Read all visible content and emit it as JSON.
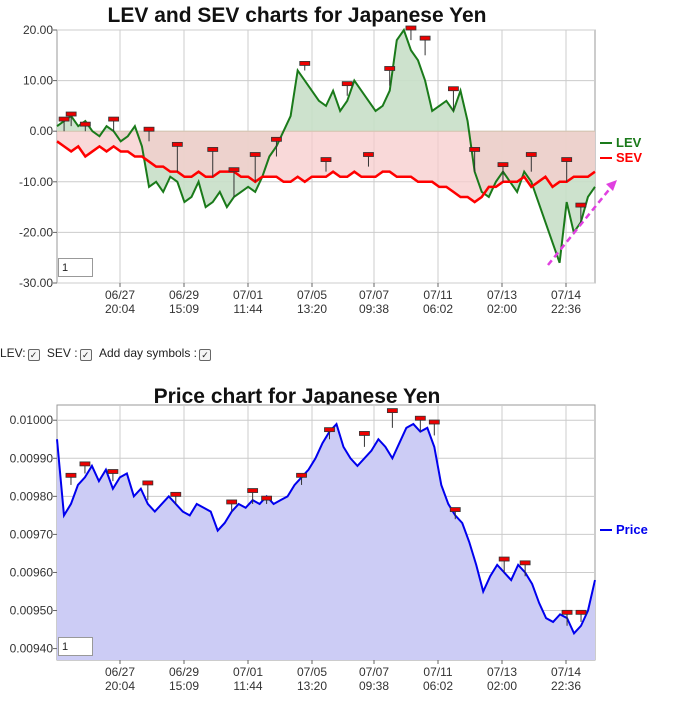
{
  "chart_data": [
    {
      "type": "line",
      "title": "LEV and SEV charts for Japanese Yen",
      "x_tick_labels": [
        [
          "06/27",
          "20:04"
        ],
        [
          "06/29",
          "15:09"
        ],
        [
          "07/01",
          "11:44"
        ],
        [
          "07/05",
          "13:20"
        ],
        [
          "07/07",
          "09:38"
        ],
        [
          "07/11",
          "06:02"
        ],
        [
          "07/13",
          "02:00"
        ],
        [
          "07/14",
          "22:36"
        ]
      ],
      "y_tick_labels": [
        "20.00",
        "10.00",
        "0.00",
        "-10.00",
        "-20.00",
        "-30.00"
      ],
      "ylim": [
        -30,
        20
      ],
      "grid": true,
      "legend_position": "right",
      "zoom_value": "1",
      "series": [
        {
          "name": "LEV",
          "color": "#1a7a1a",
          "values": [
            1,
            2,
            3,
            1,
            2,
            0,
            -1,
            1,
            0,
            -2,
            -1,
            1,
            -3,
            -11,
            -10,
            -12,
            -9,
            -10,
            -14,
            -13,
            -10,
            -15,
            -14,
            -12,
            -15,
            -13,
            -12,
            -11,
            -12,
            -9,
            -5,
            -3,
            0,
            3,
            12,
            10,
            8,
            6,
            5,
            8,
            4,
            6,
            10,
            8,
            6,
            4,
            5,
            8,
            18,
            20,
            16,
            14,
            10,
            4,
            5,
            6,
            4,
            8,
            2,
            -8,
            -12,
            -13,
            -10,
            -8,
            -10,
            -12,
            -8,
            -10,
            -14,
            -18,
            -22,
            -26,
            -14,
            -20,
            -18,
            -13,
            -11
          ]
        },
        {
          "name": "SEV",
          "color": "#ff0000",
          "values": [
            -2,
            -3,
            -4,
            -3,
            -5,
            -4,
            -3,
            -4,
            -3,
            -4,
            -4,
            -5,
            -5,
            -6,
            -7,
            -7,
            -8,
            -8,
            -9,
            -9,
            -8,
            -9,
            -9,
            -8,
            -8,
            -8,
            -9,
            -9,
            -10,
            -9,
            -9,
            -9,
            -10,
            -10,
            -9,
            -10,
            -9,
            -9,
            -9,
            -8,
            -9,
            -9,
            -8,
            -9,
            -9,
            -9,
            -8,
            -8,
            -9,
            -9,
            -9,
            -10,
            -10,
            -10,
            -11,
            -11,
            -12,
            -13,
            -13,
            -14,
            -13,
            -11,
            -11,
            -10,
            -10,
            -10,
            -9,
            -11,
            -10,
            -9,
            -11,
            -10,
            -10,
            -9,
            -9,
            -9,
            -8
          ]
        }
      ],
      "shading": {
        "above_zero_fill": "#c8dfc8",
        "below_zero_fill": "#f7cccc",
        "band_fill": "#d4c4b0"
      },
      "trend_arrow_color": "#e040e0",
      "day_markers": [
        {
          "x": 1,
          "y": 0,
          "level": 2,
          "dir": "up"
        },
        {
          "x": 2,
          "y": 1,
          "level": 3,
          "dir": "up"
        },
        {
          "x": 4,
          "y": 0,
          "level": 1,
          "dir": "up"
        },
        {
          "x": 8,
          "y": 0,
          "level": 2,
          "dir": "up"
        },
        {
          "x": 13,
          "y": -2,
          "level": 0,
          "dir": "up"
        },
        {
          "x": 17,
          "y": -8,
          "level": -3,
          "dir": "up"
        },
        {
          "x": 22,
          "y": -9,
          "level": -4,
          "dir": "up"
        },
        {
          "x": 25,
          "y": -13,
          "level": -8,
          "dir": "up"
        },
        {
          "x": 28,
          "y": -10,
          "level": -5,
          "dir": "up"
        },
        {
          "x": 31,
          "y": -5,
          "level": -2,
          "dir": "up"
        },
        {
          "x": 35,
          "y": 12,
          "level": 13,
          "dir": "up"
        },
        {
          "x": 38,
          "y": -8,
          "level": -6,
          "dir": "up"
        },
        {
          "x": 41,
          "y": 7,
          "level": 9,
          "dir": "up"
        },
        {
          "x": 44,
          "y": -7,
          "level": -5,
          "dir": "up"
        },
        {
          "x": 47,
          "y": 9,
          "level": 12,
          "dir": "up"
        },
        {
          "x": 50,
          "y": 18,
          "level": 20,
          "dir": "up"
        },
        {
          "x": 52,
          "y": 15,
          "level": 18,
          "dir": "up"
        },
        {
          "x": 56,
          "y": 4,
          "level": 8,
          "dir": "up"
        },
        {
          "x": 59,
          "y": -8,
          "level": -4,
          "dir": "up"
        },
        {
          "x": 63,
          "y": -10,
          "level": -7,
          "dir": "up"
        },
        {
          "x": 67,
          "y": -8,
          "level": -5,
          "dir": "up"
        },
        {
          "x": 72,
          "y": -10,
          "level": -6,
          "dir": "up"
        },
        {
          "x": 74,
          "y": -18,
          "level": -15,
          "dir": "up"
        }
      ]
    },
    {
      "type": "area",
      "title": "Price chart for Japanese Yen",
      "x_tick_labels": [
        [
          "06/27",
          "20:04"
        ],
        [
          "06/29",
          "15:09"
        ],
        [
          "07/01",
          "11:44"
        ],
        [
          "07/05",
          "13:20"
        ],
        [
          "07/07",
          "09:38"
        ],
        [
          "07/11",
          "06:02"
        ],
        [
          "07/13",
          "02:00"
        ],
        [
          "07/14",
          "22:36"
        ]
      ],
      "y_tick_labels": [
        "0.01000",
        "0.00990",
        "0.00980",
        "0.00970",
        "0.00960",
        "0.00950",
        "0.00940"
      ],
      "ylim": [
        0.00937,
        0.01004
      ],
      "grid": true,
      "legend_position": "right",
      "zoom_value": "1",
      "series": [
        {
          "name": "Price",
          "color": "#0000ee",
          "fill": "#ccccf5",
          "values": [
            0.00995,
            0.00975,
            0.00978,
            0.00983,
            0.00985,
            0.00988,
            0.00984,
            0.00987,
            0.00982,
            0.00985,
            0.00986,
            0.0098,
            0.00982,
            0.00978,
            0.00976,
            0.00978,
            0.0098,
            0.00978,
            0.00976,
            0.00975,
            0.00978,
            0.00977,
            0.00976,
            0.00971,
            0.00973,
            0.00976,
            0.00978,
            0.00977,
            0.00979,
            0.00978,
            0.0098,
            0.00978,
            0.00979,
            0.0098,
            0.00983,
            0.00985,
            0.00987,
            0.0099,
            0.00994,
            0.00997,
            0.00999,
            0.00993,
            0.0099,
            0.00988,
            0.0099,
            0.00992,
            0.00995,
            0.00993,
            0.0099,
            0.00994,
            0.00998,
            0.00999,
            0.00997,
            0.00998,
            0.00993,
            0.00983,
            0.00978,
            0.00975,
            0.00973,
            0.00968,
            0.00962,
            0.00955,
            0.00959,
            0.00962,
            0.0096,
            0.00958,
            0.00962,
            0.0096,
            0.00957,
            0.00952,
            0.00948,
            0.00947,
            0.00949,
            0.00948,
            0.00944,
            0.00946,
            0.0095,
            0.00958
          ]
        }
      ],
      "day_markers": [
        {
          "x": 2,
          "y": 0.00983,
          "level": 0.00985,
          "dir": "up"
        },
        {
          "x": 4,
          "y": 0.00986,
          "level": 0.00988,
          "dir": "up"
        },
        {
          "x": 8,
          "y": 0.00984,
          "level": 0.00986,
          "dir": "up"
        },
        {
          "x": 13,
          "y": 0.00979,
          "level": 0.00983,
          "dir": "up"
        },
        {
          "x": 17,
          "y": 0.00978,
          "level": 0.0098,
          "dir": "up"
        },
        {
          "x": 25,
          "y": 0.00976,
          "level": 0.00978,
          "dir": "up"
        },
        {
          "x": 28,
          "y": 0.00978,
          "level": 0.00981,
          "dir": "up"
        },
        {
          "x": 30,
          "y": 0.00978,
          "level": 0.00979,
          "dir": "up"
        },
        {
          "x": 35,
          "y": 0.00983,
          "level": 0.00985,
          "dir": "up"
        },
        {
          "x": 39,
          "y": 0.00995,
          "level": 0.00997,
          "dir": "up"
        },
        {
          "x": 44,
          "y": 0.00993,
          "level": 0.00996,
          "dir": "up"
        },
        {
          "x": 48,
          "y": 0.00998,
          "level": 0.01002,
          "dir": "up"
        },
        {
          "x": 52,
          "y": 0.00997,
          "level": 0.01,
          "dir": "up"
        },
        {
          "x": 54,
          "y": 0.00996,
          "level": 0.00999,
          "dir": "up"
        },
        {
          "x": 57,
          "y": 0.00974,
          "level": 0.00976,
          "dir": "up"
        },
        {
          "x": 64,
          "y": 0.0096,
          "level": 0.00963,
          "dir": "up"
        },
        {
          "x": 67,
          "y": 0.00959,
          "level": 0.00962,
          "dir": "up"
        },
        {
          "x": 73,
          "y": 0.00946,
          "level": 0.00949,
          "dir": "up"
        },
        {
          "x": 75,
          "y": 0.00947,
          "level": 0.00949,
          "dir": "up"
        }
      ]
    }
  ],
  "controls": {
    "lev_label": "LEV:",
    "sev_label": "SEV :",
    "day_symbols_label": "Add day symbols :",
    "lev_checked": true,
    "sev_checked": true,
    "day_symbols_checked": true
  }
}
